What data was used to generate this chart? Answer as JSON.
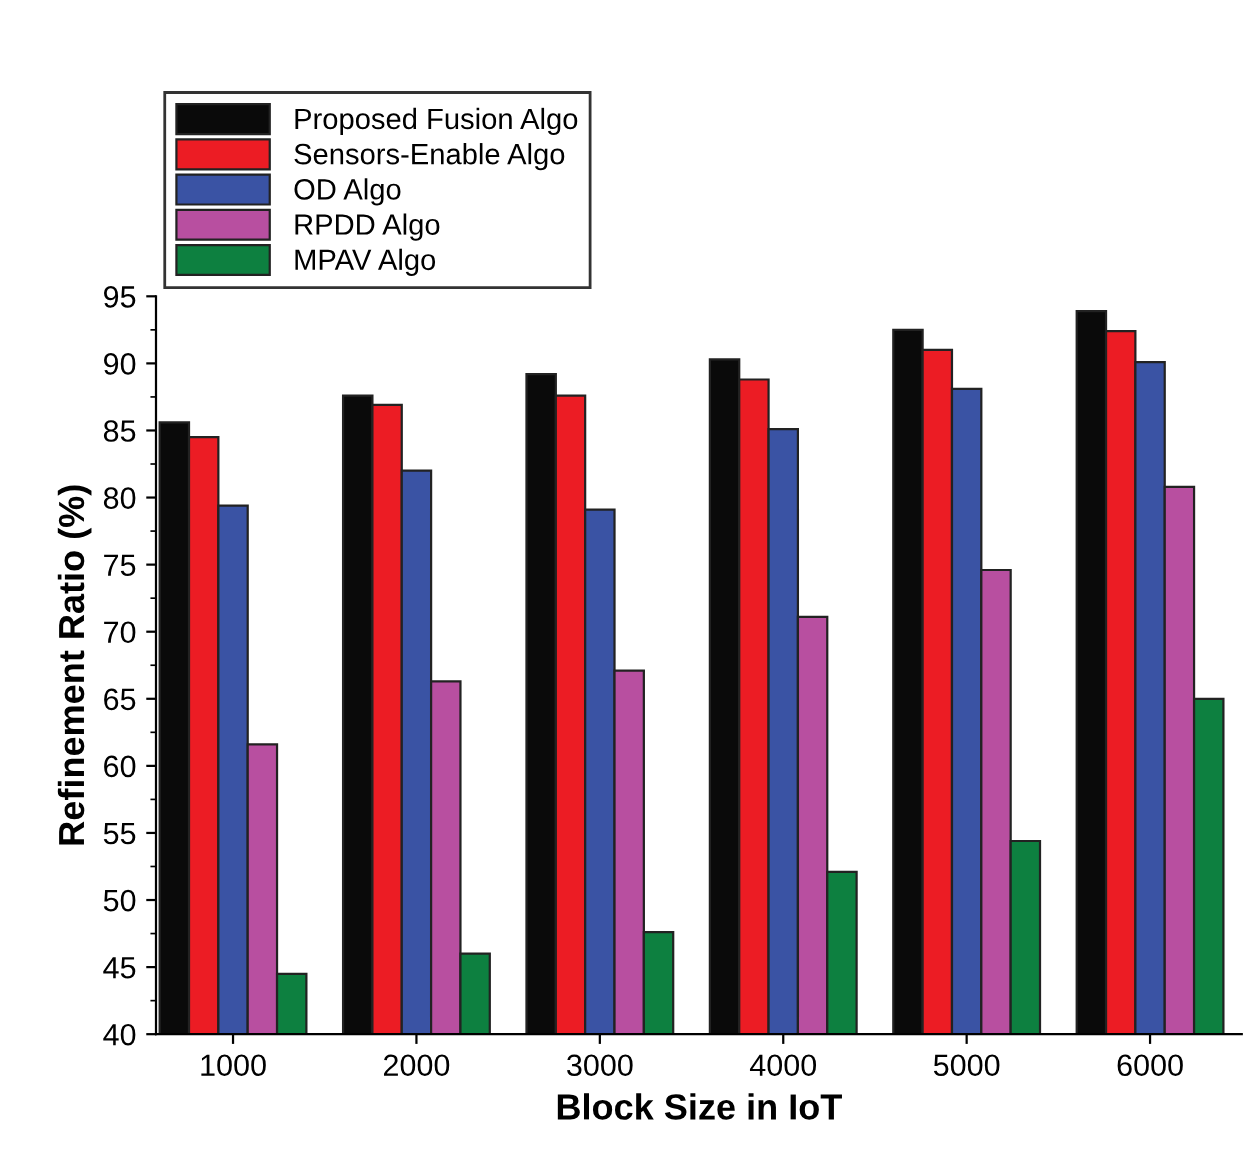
{
  "chart_data": {
    "type": "bar",
    "xlabel": "Block Size in IoT",
    "ylabel": "Refinement Ratio (%)",
    "categories": [
      "1000",
      "2000",
      "3000",
      "4000",
      "5000",
      "6000"
    ],
    "series": [
      {
        "name": "Proposed Fusion Algo",
        "color": "#0a0a0a",
        "values": [
          85.6,
          87.6,
          89.2,
          90.3,
          92.5,
          93.9
        ]
      },
      {
        "name": "Sensors-Enable Algo",
        "color": "#ec1c24",
        "values": [
          84.5,
          86.9,
          87.6,
          88.8,
          91.0,
          92.4
        ]
      },
      {
        "name": "OD Algo",
        "color": "#3a53a4",
        "values": [
          79.4,
          82.0,
          79.1,
          85.1,
          88.1,
          90.1
        ]
      },
      {
        "name": "RPDD Algo",
        "color": "#b84fa0",
        "values": [
          61.6,
          66.3,
          67.1,
          71.1,
          74.6,
          80.8
        ]
      },
      {
        "name": "MPAV Algo",
        "color": "#0d8040",
        "values": [
          44.5,
          46.0,
          47.6,
          52.1,
          54.4,
          65.0
        ]
      }
    ],
    "ylim": [
      40,
      95
    ],
    "yticks": [
      40,
      45,
      50,
      55,
      60,
      65,
      70,
      75,
      80,
      85,
      90,
      95
    ],
    "grid": false,
    "legend": "top left"
  }
}
